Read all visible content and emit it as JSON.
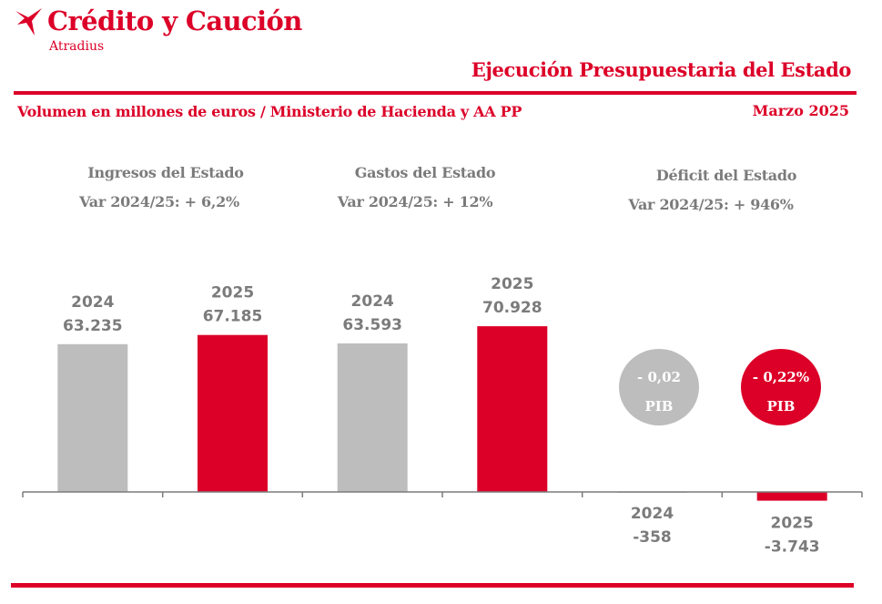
{
  "brand": {
    "name": "Crédito y Caución",
    "sub": "Atradius",
    "accent": "#dc0028",
    "gray": "#bdbdbd",
    "label_color": "#7b7b7b"
  },
  "header": {
    "title": "Ejecución Presupuestaria del Estado",
    "subtitle": "Volumen en millones de euros  / Ministerio de Hacienda y AA PP",
    "date": "Marzo 2025"
  },
  "groups": [
    {
      "title": "Ingresos del Estado",
      "var": "Var 2024/25: + 6,2%"
    },
    {
      "title": "Gastos del Estado",
      "var": "Var 2024/25: + 12%"
    },
    {
      "title": "Déficit del Estado",
      "var": "Var 2024/25: + 946%"
    }
  ],
  "pib_badges": [
    {
      "value": "- 0,02",
      "label": "PIB",
      "color": "#bdbdbd"
    },
    {
      "value": "- 0,22%",
      "label": "PIB",
      "color": "#dc0028"
    }
  ],
  "chart_data": {
    "type": "bar",
    "categories": [
      "Ingresos del Estado",
      "Ingresos del Estado",
      "Gastos del Estado",
      "Gastos del Estado",
      "Déficit del Estado",
      "Déficit del Estado"
    ],
    "years": [
      "2024",
      "2025",
      "2024",
      "2025",
      "2024",
      "2025"
    ],
    "values": [
      63235,
      67185,
      63593,
      70928,
      -358,
      -3743
    ],
    "value_labels": [
      "63.235",
      "67.185",
      "63.593",
      "70.928",
      "-358",
      "-3.743"
    ],
    "colors": [
      "#bdbdbd",
      "#dc0028",
      "#bdbdbd",
      "#dc0028",
      "#bdbdbd",
      "#dc0028"
    ],
    "ylim": [
      -6000,
      80000
    ],
    "grid": false,
    "legend": "none"
  }
}
